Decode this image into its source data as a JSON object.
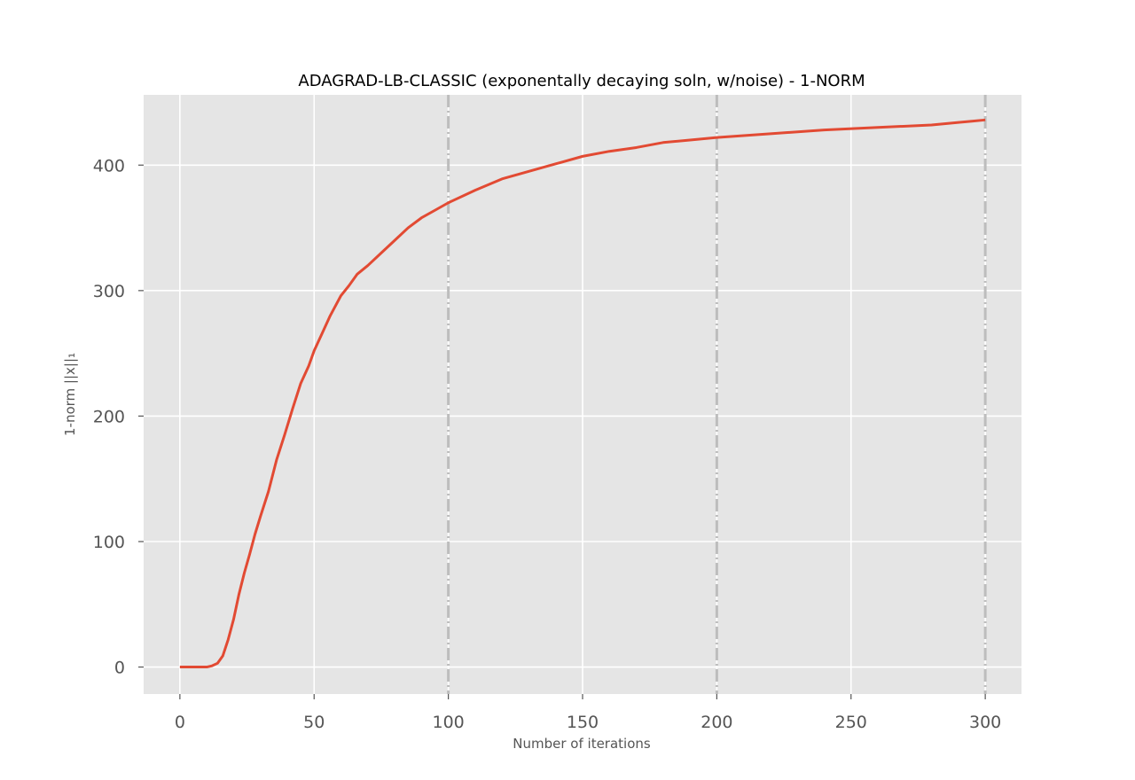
{
  "chart_data": {
    "type": "line",
    "title": "ADAGRAD-LB-CLASSIC (exponentally decaying soln, w/noise) - 1-NORM",
    "xlabel": "Number of iterations",
    "ylabel": "1-norm ||x||₁",
    "xlim": [
      -13.5,
      313.5
    ],
    "ylim": [
      -21.5,
      456
    ],
    "xticks": [
      0,
      50,
      100,
      150,
      200,
      250,
      300
    ],
    "yticks": [
      0,
      100,
      200,
      300,
      400
    ],
    "grid": true,
    "vlines": [
      100,
      200,
      300
    ],
    "colors": {
      "line": "#e24a33",
      "plot_bg": "#e5e5e5",
      "grid": "#ffffff",
      "vline": "#bdbdbd",
      "tick_text": "#555555"
    },
    "series": [
      {
        "x": [
          0,
          5,
          10,
          12,
          14,
          16,
          18,
          20,
          22,
          24,
          26,
          28,
          30,
          33,
          36,
          39,
          42,
          45,
          48,
          50,
          53,
          56,
          60,
          63,
          66,
          70,
          75,
          80,
          85,
          90,
          95,
          100,
          110,
          120,
          130,
          140,
          150,
          160,
          170,
          180,
          190,
          200,
          220,
          240,
          260,
          280,
          290,
          295,
          300
        ],
        "y": [
          0,
          0,
          0,
          1,
          3,
          9,
          22,
          38,
          58,
          75,
          90,
          106,
          120,
          140,
          165,
          185,
          206,
          226,
          240,
          252,
          266,
          280,
          296,
          304,
          313,
          320,
          330,
          340,
          350,
          358,
          364,
          370,
          380,
          389,
          395,
          401,
          407,
          411,
          414,
          418,
          420,
          422,
          425,
          428,
          430,
          432,
          434,
          435,
          436
        ]
      }
    ]
  }
}
